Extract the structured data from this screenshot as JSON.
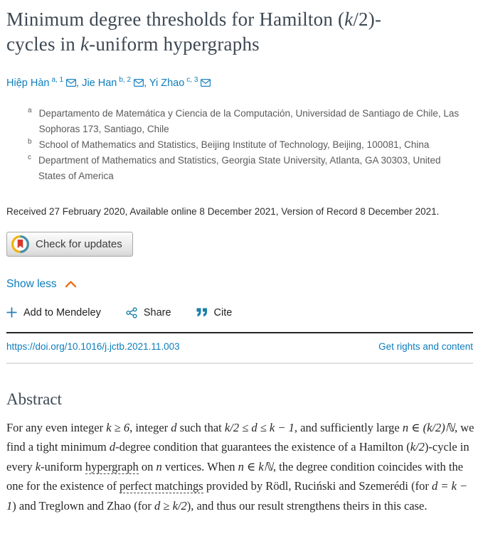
{
  "header": {
    "title": {
      "part1": "Minimum degree thresholds for Hamilton (",
      "k1": "k",
      "part2": "/2)-",
      "part3": "cycles in ",
      "k2": "k",
      "part4": "-uniform hypergraphs"
    },
    "authors": [
      {
        "name": "Hiệp Hàn",
        "sup": "a, 1"
      },
      {
        "name": "Jie Han",
        "sup": "b, 2"
      },
      {
        "name": "Yi Zhao",
        "sup": "c, 3"
      }
    ],
    "author_separator": ", ",
    "affiliations": [
      {
        "label": "a",
        "text": "Departamento de Matemática y Ciencia de la Computación, Universidad de Santiago de Chile, Las Sophoras 173, Santiago, Chile"
      },
      {
        "label": "b",
        "text": "School of Mathematics and Statistics, Beijing Institute of Technology, Beijing, 100081, China"
      },
      {
        "label": "c",
        "text": "Department of Mathematics and Statistics, Georgia State University, Atlanta, GA 30303, United States of America"
      }
    ],
    "received_line": "Received 27 February 2020, Available online 8 December 2021, Version of Record 8 December 2021.",
    "check_for_updates_label": "Check for updates",
    "show_less_label": "Show less"
  },
  "toolbar": {
    "add_to_mendeley": "Add to Mendeley",
    "share": "Share",
    "cite": "Cite"
  },
  "doi_row": {
    "doi_url": "https://doi.org/10.1016/j.jctb.2021.11.003",
    "rights_link": "Get rights and content"
  },
  "abstract": {
    "heading": "Abstract",
    "segments": [
      {
        "type": "text",
        "text": "For any even integer "
      },
      {
        "type": "math",
        "text": "k ≥ 6"
      },
      {
        "type": "text",
        "text": ", integer "
      },
      {
        "type": "math",
        "text": "d"
      },
      {
        "type": "text",
        "text": " such that "
      },
      {
        "type": "math",
        "text": "k/2 ≤ d ≤ k − 1"
      },
      {
        "type": "text",
        "text": ", and sufficiently large "
      },
      {
        "type": "math",
        "text": "n ∈ (k/2)ℕ"
      },
      {
        "type": "text",
        "text": ", we find a tight minimum "
      },
      {
        "type": "math",
        "text": "d"
      },
      {
        "type": "text",
        "text": "-degree condition that guarantees the existence of a Hamilton ("
      },
      {
        "type": "math",
        "text": "k/2"
      },
      {
        "type": "text",
        "text": ")-cycle in every "
      },
      {
        "type": "math",
        "text": "k"
      },
      {
        "type": "text",
        "text": "-uniform "
      },
      {
        "type": "link",
        "text": "hypergraph"
      },
      {
        "type": "text",
        "text": " on "
      },
      {
        "type": "math",
        "text": "n"
      },
      {
        "type": "text",
        "text": " vertices. When "
      },
      {
        "type": "math",
        "text": "n ∈ kℕ"
      },
      {
        "type": "text",
        "text": ", the degree condition coincides with the one for the existence of "
      },
      {
        "type": "link",
        "text": "perfect matchings"
      },
      {
        "type": "text",
        "text": " provided by Rödl, Ruciński and Szemerédi (for "
      },
      {
        "type": "math",
        "text": "d = k − 1"
      },
      {
        "type": "text",
        "text": ") and Treglown and Zhao (for "
      },
      {
        "type": "math",
        "text": "d ≥ k/2"
      },
      {
        "type": "text",
        "text": "), and thus our result strengthens theirs in this case."
      }
    ]
  },
  "icons": {
    "email": "envelope-icon",
    "check_updates": "crossmark-circle-icon",
    "show_less": "chevron-up-icon",
    "add": "plus-icon",
    "share": "share-network-icon",
    "cite": "double-quote-icon"
  },
  "colors": {
    "link_blue": "#0c7dbd",
    "accent_orange": "#e9711c",
    "heading_slate": "#3d4853",
    "body_text": "#272727",
    "affiliation_gray": "#5a5a5a",
    "crossmark_yellow": "#f1b112",
    "crossmark_blue": "#3e8fb0",
    "crossmark_red": "#d8382e"
  }
}
